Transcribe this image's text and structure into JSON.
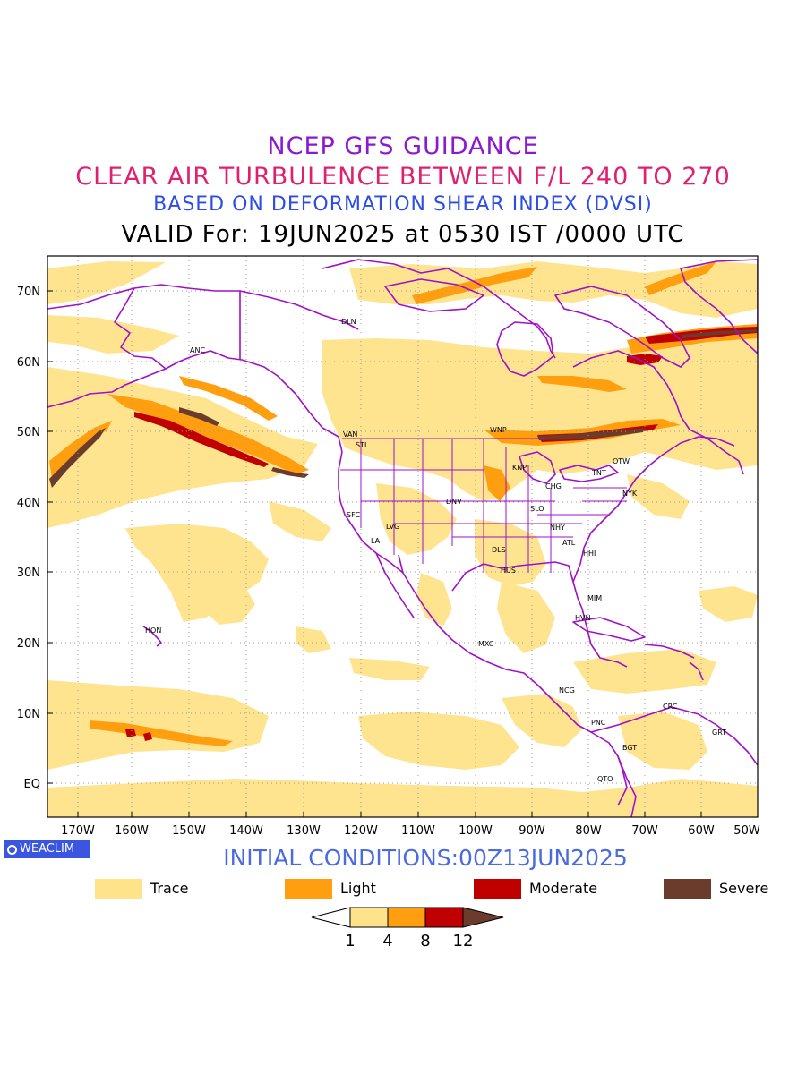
{
  "titles": {
    "line1": "NCEP GFS GUIDANCE",
    "line2": "CLEAR AIR TURBULENCE BETWEEN F/L 240 TO 270",
    "line3": "BASED ON DEFORMATION SHEAR INDEX (DVSI)",
    "line4": "VALID For: 19JUN2025 at 0530 IST /0000 UTC"
  },
  "colors": {
    "title1": "#8a1ad0",
    "title2": "#e0206e",
    "title3": "#2c4ee6",
    "initial": "#4a6ae0",
    "coast": "#a010c8",
    "trace": "#ffe38a",
    "light": "#ff9f0f",
    "moderate": "#c00000",
    "severe": "#6b3b2c"
  },
  "axes": {
    "lat_labels": [
      "70N",
      "60N",
      "50N",
      "40N",
      "30N",
      "20N",
      "10N",
      "EQ"
    ],
    "lon_labels": [
      "170W",
      "160W",
      "150W",
      "140W",
      "130W",
      "120W",
      "110W",
      "100W",
      "90W",
      "80W",
      "70W",
      "60W",
      "50W"
    ]
  },
  "stations": [
    {
      "code": "ANC"
    },
    {
      "code": "DLN"
    },
    {
      "code": "VAN"
    },
    {
      "code": "STL"
    },
    {
      "code": "WNP"
    },
    {
      "code": "KNP"
    },
    {
      "code": "CHG"
    },
    {
      "code": "TNT"
    },
    {
      "code": "OTW"
    },
    {
      "code": "NYK"
    },
    {
      "code": "DNV"
    },
    {
      "code": "SFC"
    },
    {
      "code": "LVG"
    },
    {
      "code": "LA"
    },
    {
      "code": "SLO"
    },
    {
      "code": "NHY"
    },
    {
      "code": "ATL"
    },
    {
      "code": "DLS"
    },
    {
      "code": "HHI"
    },
    {
      "code": "HUS"
    },
    {
      "code": "MIM"
    },
    {
      "code": "HVN"
    },
    {
      "code": "HON"
    },
    {
      "code": "MXC"
    },
    {
      "code": "NCG"
    },
    {
      "code": "CRC"
    },
    {
      "code": "PNC"
    },
    {
      "code": "GRT"
    },
    {
      "code": "BGT"
    },
    {
      "code": "QTO"
    }
  ],
  "brand": "WEACLIM",
  "initial_conditions": "INITIAL CONDITIONS:00Z13JUN2025",
  "legend": [
    {
      "label": "Trace",
      "color": "#ffe38a"
    },
    {
      "label": "Light",
      "color": "#ff9f0f"
    },
    {
      "label": "Moderate",
      "color": "#c00000"
    },
    {
      "label": "Severe",
      "color": "#6b3b2c"
    }
  ],
  "colorbar": {
    "ticks": [
      "1",
      "4",
      "8",
      "12"
    ]
  }
}
